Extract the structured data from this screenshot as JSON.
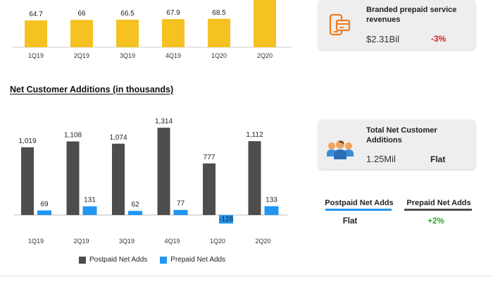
{
  "chart_data": [
    {
      "type": "bar",
      "categories": [
        "1Q19",
        "2Q19",
        "3Q19",
        "4Q19",
        "1Q20",
        "2Q20"
      ],
      "values": [
        64.7,
        66,
        66.5,
        67.9,
        68.5,
        null
      ],
      "data_labels": [
        "64.7",
        "66",
        "66.5",
        "67.9",
        "68.5",
        ""
      ],
      "color": "#f5c222",
      "note": "top chart partially cropped; 2Q20 label not visible"
    },
    {
      "type": "bar",
      "title": "Net Customer Additions (in thousands)",
      "categories": [
        "1Q19",
        "2Q19",
        "3Q19",
        "4Q19",
        "1Q20",
        "2Q20"
      ],
      "series": [
        {
          "name": "Postpaid Net Adds",
          "values": [
            1019,
            1108,
            1074,
            1314,
            777,
            1112
          ],
          "labels": [
            "1,019",
            "1,108",
            "1,074",
            "1,314",
            "777",
            "1,112"
          ],
          "color": "#4d4d4d"
        },
        {
          "name": "Prepaid Net Adds",
          "values": [
            69,
            131,
            62,
            77,
            -128,
            133
          ],
          "labels": [
            "69",
            "131",
            "62",
            "77",
            "-128",
            "133"
          ],
          "color": "#2196f3"
        }
      ],
      "legend": "bottom"
    }
  ],
  "cards": {
    "branded": {
      "title": "Branded prepaid service revenues",
      "value": "$2.31Bil",
      "change": "-3%",
      "change_color": "#e02020",
      "icon": "devices-icon"
    },
    "total_net": {
      "title": "Total Net Customer Additions",
      "value": "1.25Mil",
      "change": "Flat",
      "change_color": "#222222",
      "icon": "people-group-icon"
    }
  },
  "comparison": {
    "postpaid_label": "Postpaid Net Adds",
    "prepaid_label": "Prepaid Net Adds",
    "postpaid_value": "Flat",
    "prepaid_value": "+2%",
    "postpaid_color": "#2196f3",
    "prepaid_color": "#4d4d4d",
    "prepaid_value_color": "#2ea52e"
  }
}
